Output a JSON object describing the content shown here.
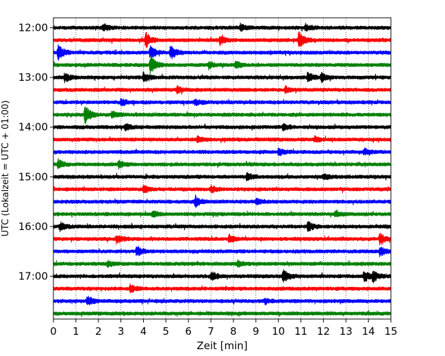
{
  "chart_data": {
    "type": "line",
    "title": "",
    "xlabel": "Zeit  [min]",
    "ylabel": "UTC (Lokalzeit = UTC + 01:00)",
    "xlim": [
      0,
      15
    ],
    "x_ticks": [
      0,
      1,
      2,
      3,
      4,
      5,
      6,
      7,
      8,
      9,
      10,
      11,
      12,
      13,
      14,
      15
    ],
    "x_tick_labels": [
      "0",
      "1",
      "2",
      "3",
      "4",
      "5",
      "6",
      "7",
      "8",
      "9",
      "10",
      "11",
      "12",
      "13",
      "14",
      "15"
    ],
    "y_tick_labels": [
      "12:00",
      "13:00",
      "14:00",
      "15:00",
      "16:00",
      "17:00"
    ],
    "grid": {
      "vertical": true,
      "style": "dotted"
    },
    "trace_interval_min": 15,
    "trace_colors": [
      "#000000",
      "#ff0000",
      "#0000ff",
      "#008000"
    ],
    "traces": [
      {
        "start": "12:00",
        "events": [
          {
            "t": 2.2,
            "amp": 1.3
          },
          {
            "t": 8.3,
            "amp": 1.3
          },
          {
            "t": 11.2,
            "amp": 1.2
          }
        ]
      },
      {
        "start": "12:15",
        "events": [
          {
            "t": 4.1,
            "amp": 2.6
          },
          {
            "t": 7.4,
            "amp": 1.4
          },
          {
            "t": 10.9,
            "amp": 3.2
          }
        ]
      },
      {
        "start": "12:30",
        "events": [
          {
            "t": 0.2,
            "amp": 3.0
          },
          {
            "t": 4.3,
            "amp": 2.2
          },
          {
            "t": 5.2,
            "amp": 2.4
          }
        ]
      },
      {
        "start": "12:45",
        "events": [
          {
            "t": 4.3,
            "amp": 3.6
          },
          {
            "t": 6.9,
            "amp": 1.2
          },
          {
            "t": 8.1,
            "amp": 1.3
          }
        ]
      },
      {
        "start": "13:00",
        "events": [
          {
            "t": 0.5,
            "amp": 1.6
          },
          {
            "t": 4.0,
            "amp": 1.8
          },
          {
            "t": 11.3,
            "amp": 1.8
          },
          {
            "t": 11.9,
            "amp": 1.6
          }
        ]
      },
      {
        "start": "13:15",
        "events": [
          {
            "t": 5.5,
            "amp": 1.1
          },
          {
            "t": 10.3,
            "amp": 1.1
          }
        ]
      },
      {
        "start": "13:30",
        "events": [
          {
            "t": 3.0,
            "amp": 1.2
          },
          {
            "t": 6.3,
            "amp": 1.0
          }
        ]
      },
      {
        "start": "13:45",
        "events": [
          {
            "t": 1.4,
            "amp": 3.4
          },
          {
            "t": 2.6,
            "amp": 1.2
          }
        ]
      },
      {
        "start": "14:00",
        "events": [
          {
            "t": 3.2,
            "amp": 1.1
          },
          {
            "t": 10.2,
            "amp": 1.1
          }
        ]
      },
      {
        "start": "14:15",
        "events": [
          {
            "t": 6.4,
            "amp": 1.0
          },
          {
            "t": 11.6,
            "amp": 1.0
          }
        ]
      },
      {
        "start": "14:30",
        "events": [
          {
            "t": 10.0,
            "amp": 1.2
          },
          {
            "t": 13.8,
            "amp": 1.0
          }
        ]
      },
      {
        "start": "14:45",
        "events": [
          {
            "t": 0.2,
            "amp": 1.8
          },
          {
            "t": 2.9,
            "amp": 1.2
          }
        ]
      },
      {
        "start": "15:00",
        "events": [
          {
            "t": 8.6,
            "amp": 1.4
          },
          {
            "t": 12.0,
            "amp": 1.1
          }
        ]
      },
      {
        "start": "15:15",
        "events": [
          {
            "t": 4.0,
            "amp": 1.4
          },
          {
            "t": 7.0,
            "amp": 1.1
          }
        ]
      },
      {
        "start": "15:30",
        "events": [
          {
            "t": 6.3,
            "amp": 1.8
          },
          {
            "t": 9.0,
            "amp": 1.0
          }
        ]
      },
      {
        "start": "15:45",
        "events": [
          {
            "t": 4.4,
            "amp": 1.0
          },
          {
            "t": 12.5,
            "amp": 1.0
          }
        ]
      },
      {
        "start": "16:00",
        "events": [
          {
            "t": 0.3,
            "amp": 1.4
          },
          {
            "t": 11.3,
            "amp": 2.0
          }
        ]
      },
      {
        "start": "16:15",
        "events": [
          {
            "t": 2.8,
            "amp": 1.6
          },
          {
            "t": 7.8,
            "amp": 1.5
          },
          {
            "t": 14.5,
            "amp": 2.0
          }
        ]
      },
      {
        "start": "16:30",
        "events": [
          {
            "t": 3.7,
            "amp": 1.8
          },
          {
            "t": 14.5,
            "amp": 1.6
          }
        ]
      },
      {
        "start": "16:45",
        "events": [
          {
            "t": 2.4,
            "amp": 1.0
          },
          {
            "t": 8.2,
            "amp": 1.0
          }
        ]
      },
      {
        "start": "17:00",
        "events": [
          {
            "t": 7.0,
            "amp": 1.6
          },
          {
            "t": 10.2,
            "amp": 2.4
          },
          {
            "t": 13.8,
            "amp": 2.0
          },
          {
            "t": 14.2,
            "amp": 1.8
          }
        ]
      },
      {
        "start": "17:15",
        "events": [
          {
            "t": 3.4,
            "amp": 1.4
          }
        ]
      },
      {
        "start": "17:30",
        "events": [
          {
            "t": 1.5,
            "amp": 1.8
          },
          {
            "t": 9.4,
            "amp": 1.0
          }
        ]
      },
      {
        "start": "17:45",
        "events": []
      }
    ]
  }
}
